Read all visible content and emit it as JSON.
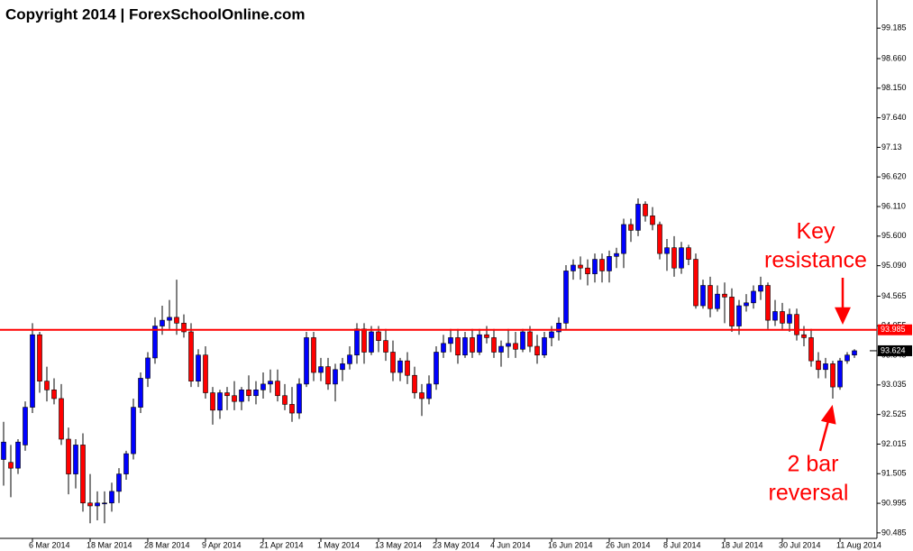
{
  "chart_data": {
    "type": "candlestick",
    "title": "Copyright 2014 | ForexSchoolOnline.com",
    "categories": [
      null,
      null,
      null,
      null,
      "6 Mar 2014",
      null,
      null,
      null,
      null,
      null,
      null,
      null,
      "18 Mar 2014",
      null,
      null,
      null,
      null,
      null,
      null,
      null,
      "28 Mar 2014",
      null,
      null,
      null,
      null,
      null,
      null,
      null,
      "9 Apr 2014",
      null,
      null,
      null,
      null,
      null,
      null,
      null,
      "21 Apr 2014",
      null,
      null,
      null,
      null,
      null,
      null,
      null,
      "1 May 2014",
      null,
      null,
      null,
      null,
      null,
      null,
      null,
      "13 May 2014",
      null,
      null,
      null,
      null,
      null,
      null,
      null,
      "23 May 2014",
      null,
      null,
      null,
      null,
      null,
      null,
      null,
      "4 Jun 2014",
      null,
      null,
      null,
      null,
      null,
      null,
      null,
      "16 Jun 2014",
      null,
      null,
      null,
      null,
      null,
      null,
      null,
      "26 Jun 2014",
      null,
      null,
      null,
      null,
      null,
      null,
      null,
      "8 Jul 2014",
      null,
      null,
      null,
      null,
      null,
      null,
      null,
      "18 Jul 2014",
      null,
      null,
      null,
      null,
      null,
      null,
      null,
      "30 Jul 2014",
      null,
      null,
      null,
      null,
      null,
      null,
      null,
      "11 Aug 2014",
      null,
      null
    ],
    "open": [
      91.75,
      91.7,
      91.6,
      92.0,
      92.65,
      93.9,
      93.1,
      92.95,
      92.8,
      92.1,
      91.5,
      92.0,
      91.0,
      90.95,
      91.0,
      91.0,
      91.2,
      91.5,
      91.85,
      92.65,
      93.15,
      93.5,
      94.05,
      94.15,
      94.2,
      94.1,
      93.95,
      93.1,
      93.55,
      92.9,
      92.6,
      92.9,
      92.85,
      92.75,
      92.95,
      92.85,
      92.95,
      93.05,
      93.1,
      92.85,
      92.7,
      92.55,
      93.05,
      93.85,
      93.25,
      93.35,
      93.05,
      93.3,
      93.4,
      93.55,
      94.0,
      93.6,
      93.95,
      93.8,
      93.6,
      93.25,
      93.45,
      93.2,
      92.9,
      92.8,
      93.05,
      93.6,
      93.75,
      93.85,
      93.55,
      93.85,
      93.6,
      93.9,
      93.85,
      93.6,
      93.7,
      93.75,
      93.65,
      93.95,
      93.7,
      93.55,
      93.85,
      93.95,
      94.1,
      95.0,
      95.1,
      95.05,
      94.95,
      95.2,
      95.0,
      95.25,
      95.3,
      95.8,
      95.7,
      96.15,
      95.95,
      95.8,
      95.3,
      95.4,
      95.05,
      95.4,
      95.2,
      94.4,
      94.75,
      94.35,
      94.6,
      94.55,
      94.05,
      94.4,
      94.45,
      94.65,
      94.75,
      94.15,
      94.3,
      94.1,
      94.25,
      93.9,
      93.85,
      93.45,
      93.3,
      93.4,
      93.0,
      93.45,
      93.55
    ],
    "high": [
      92.4,
      92.0,
      92.1,
      92.75,
      94.1,
      93.95,
      93.35,
      93.15,
      93.05,
      92.3,
      92.1,
      92.2,
      91.5,
      91.2,
      91.2,
      91.35,
      91.6,
      91.9,
      92.8,
      93.25,
      93.6,
      94.2,
      94.4,
      94.5,
      94.85,
      94.25,
      94.1,
      93.65,
      93.7,
      93.0,
      92.95,
      93.0,
      93.1,
      93.0,
      93.2,
      93.1,
      93.25,
      93.3,
      93.3,
      93.05,
      93.0,
      93.15,
      93.95,
      93.95,
      93.5,
      93.5,
      93.4,
      93.5,
      93.7,
      94.1,
      94.1,
      94.05,
      94.05,
      94.0,
      93.8,
      93.5,
      93.6,
      93.35,
      93.05,
      93.2,
      93.7,
      93.9,
      94.0,
      94.0,
      93.95,
      94.0,
      94.0,
      94.05,
      94.0,
      93.8,
      94.0,
      93.95,
      94.0,
      94.05,
      93.9,
      93.95,
      94.05,
      94.2,
      95.1,
      95.2,
      95.25,
      95.2,
      95.3,
      95.3,
      95.35,
      95.4,
      95.9,
      95.9,
      96.25,
      96.2,
      96.1,
      95.85,
      95.55,
      95.6,
      95.5,
      95.45,
      95.3,
      94.85,
      94.9,
      94.75,
      94.8,
      94.7,
      94.5,
      94.6,
      94.75,
      94.9,
      94.8,
      94.5,
      94.45,
      94.35,
      94.35,
      94.05,
      94.0,
      93.6,
      93.5,
      93.45,
      93.5,
      93.6,
      93.65
    ],
    "low": [
      91.3,
      91.1,
      91.5,
      91.9,
      92.55,
      92.9,
      92.75,
      92.7,
      92.0,
      91.15,
      91.25,
      90.85,
      90.65,
      90.7,
      90.65,
      90.85,
      91.0,
      91.4,
      91.75,
      92.55,
      93.0,
      93.4,
      93.9,
      94.0,
      93.9,
      93.85,
      93.0,
      93.0,
      92.8,
      92.35,
      92.45,
      92.6,
      92.6,
      92.6,
      92.75,
      92.7,
      92.8,
      92.9,
      92.75,
      92.6,
      92.4,
      92.45,
      93.0,
      93.1,
      93.1,
      92.95,
      92.75,
      93.1,
      93.3,
      93.4,
      93.4,
      93.55,
      93.6,
      93.45,
      93.1,
      93.1,
      93.05,
      92.8,
      92.5,
      92.7,
      92.95,
      93.5,
      93.6,
      93.4,
      93.5,
      93.5,
      93.55,
      93.75,
      93.5,
      93.35,
      93.5,
      93.5,
      93.6,
      93.6,
      93.4,
      93.5,
      93.7,
      93.8,
      94.0,
      94.85,
      94.85,
      94.75,
      94.8,
      94.8,
      94.8,
      95.05,
      95.05,
      95.5,
      95.6,
      95.85,
      95.7,
      95.2,
      95.0,
      94.9,
      94.95,
      95.1,
      94.35,
      94.35,
      94.2,
      94.3,
      94.1,
      93.95,
      93.9,
      94.3,
      94.35,
      94.5,
      94.0,
      94.05,
      94.0,
      93.95,
      93.8,
      93.7,
      93.35,
      93.15,
      93.15,
      92.8,
      92.95,
      93.4,
      93.5
    ],
    "close": [
      92.05,
      91.6,
      92.05,
      92.65,
      93.9,
      93.1,
      92.95,
      92.8,
      92.1,
      91.5,
      92.0,
      91.0,
      90.95,
      91.0,
      91.0,
      91.2,
      91.5,
      91.85,
      92.65,
      93.15,
      93.5,
      94.05,
      94.15,
      94.2,
      94.1,
      93.95,
      93.1,
      93.55,
      92.9,
      92.6,
      92.9,
      92.85,
      92.75,
      92.95,
      92.85,
      92.95,
      93.05,
      93.1,
      92.85,
      92.7,
      92.55,
      93.05,
      93.85,
      93.25,
      93.35,
      93.05,
      93.3,
      93.4,
      93.55,
      94.0,
      93.6,
      93.95,
      93.8,
      93.6,
      93.25,
      93.45,
      93.2,
      92.9,
      92.8,
      93.05,
      93.6,
      93.75,
      93.85,
      93.55,
      93.85,
      93.6,
      93.9,
      93.85,
      93.6,
      93.7,
      93.75,
      93.65,
      93.95,
      93.7,
      93.55,
      93.85,
      93.95,
      94.1,
      95.0,
      95.1,
      95.05,
      94.95,
      95.2,
      95.0,
      95.25,
      95.3,
      95.8,
      95.7,
      96.15,
      95.95,
      95.8,
      95.3,
      95.4,
      95.05,
      95.4,
      95.2,
      94.4,
      94.75,
      94.35,
      94.6,
      94.55,
      94.05,
      94.4,
      94.45,
      94.65,
      94.75,
      94.15,
      94.3,
      94.1,
      94.25,
      93.9,
      93.85,
      93.45,
      93.3,
      93.4,
      93.0,
      93.45,
      93.55,
      93.624
    ],
    "up_color": "#0000ff",
    "down_color": "#ff0000",
    "wick_color": "#000000",
    "ylim": [
      90.39,
      99.67
    ],
    "yticks": [
      99.185,
      {
        "value": 98.66,
        "label": "98.660"
      },
      {
        "value": 98.15,
        "label": "98.150"
      },
      {
        "value": 97.64,
        "label": "97.640"
      },
      97.13,
      {
        "value": 96.62,
        "label": "96.620"
      },
      {
        "value": 96.11,
        "label": "96.110"
      },
      {
        "value": 95.6,
        "label": "95.600"
      },
      {
        "value": 95.09,
        "label": "95.090"
      },
      94.565,
      94.055,
      93.545,
      93.035,
      92.525,
      92.015,
      91.505,
      90.995,
      90.485
    ],
    "hlines": [
      {
        "value": 93.985,
        "color": "#ff0000"
      }
    ],
    "annotations": [
      {
        "lines": [
          "Key",
          "resistance"
        ],
        "color": "#ff0000"
      },
      {
        "lines": [
          "2 bar",
          "reversal"
        ],
        "color": "#ff0000"
      }
    ]
  }
}
